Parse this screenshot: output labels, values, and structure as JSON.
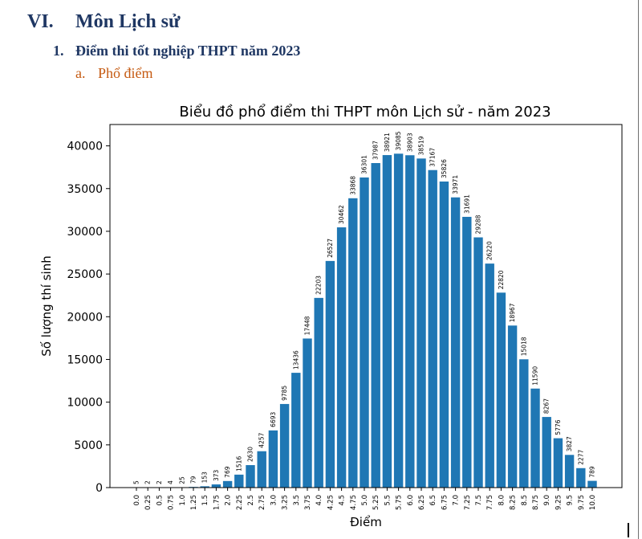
{
  "document": {
    "heading1": {
      "number": "VI.",
      "text": "Môn Lịch sử"
    },
    "heading2": {
      "number": "1.",
      "text": "Điểm thi tốt nghiệp THPT năm 2023"
    },
    "heading3": {
      "number": "a.",
      "text": "Phổ điểm"
    },
    "colors": {
      "heading": "#1f3763",
      "subheading": "#c55a11"
    }
  },
  "chart_data": {
    "type": "bar",
    "title": "Biểu đồ phổ điểm thi THPT môn Lịch sử - năm 2023",
    "xlabel": "Điểm",
    "ylabel": "Số lượng thí sinh",
    "ylim": [
      0,
      42500
    ],
    "yticks": [
      0,
      5000,
      10000,
      15000,
      20000,
      25000,
      30000,
      35000,
      40000
    ],
    "grid": false,
    "bar_color": "#1f77b4",
    "categories": [
      "0.0",
      "0.25",
      "0.5",
      "0.75",
      "1.0",
      "1.25",
      "1.5",
      "1.75",
      "2.0",
      "2.25",
      "2.5",
      "2.75",
      "3.0",
      "3.25",
      "3.5",
      "3.75",
      "4.0",
      "4.25",
      "4.5",
      "4.75",
      "5.0",
      "5.25",
      "5.5",
      "5.75",
      "6.0",
      "6.25",
      "6.5",
      "6.75",
      "7.0",
      "7.25",
      "7.5",
      "7.75",
      "8.0",
      "8.25",
      "8.5",
      "8.75",
      "9.0",
      "9.25",
      "9.5",
      "9.75",
      "10.0"
    ],
    "values": [
      5,
      2,
      2,
      4,
      25,
      79,
      153,
      373,
      769,
      1516,
      2630,
      4257,
      6693,
      9785,
      13436,
      17448,
      22203,
      26527,
      30462,
      33868,
      36301,
      37987,
      38921,
      39085,
      38903,
      38519,
      37167,
      35826,
      33971,
      31691,
      29288,
      26220,
      22820,
      18967,
      15018,
      11590,
      8267,
      5776,
      3827,
      2277,
      789
    ]
  }
}
